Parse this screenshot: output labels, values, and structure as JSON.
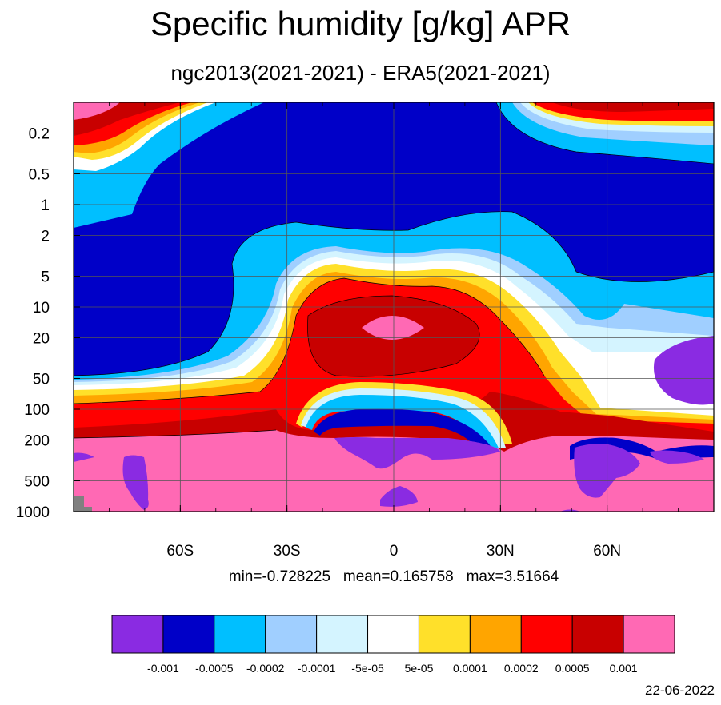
{
  "title": "Specific humidity [g/kg] APR",
  "subtitle": "ngc2013(2021-2021) - ERA5(2021-2021)",
  "stats": {
    "text": "min=-0.728225   mean=0.165758   max=3.51664",
    "min": -0.728225,
    "mean": 0.165758,
    "max": 3.51664
  },
  "date": "22-06-2022",
  "colors": {
    "purple": "#8A2BE2",
    "dark_blue": "#0000C8",
    "blue": "#00BFFF",
    "light_blue": "#A0CFFF",
    "pale_blue": "#D4F4FF",
    "white": "#FFFFFF",
    "yellow": "#FFE02A",
    "orange": "#FFA500",
    "red": "#FF0000",
    "dark_red": "#C80000",
    "pink": "#FF69B4",
    "missing": "#808080"
  },
  "chart_data": {
    "type": "heatmap",
    "title": "Specific humidity [g/kg] APR",
    "subtitle": "ngc2013(2021-2021) - ERA5(2021-2021)",
    "x_axis": {
      "ticks": [
        -60,
        -30,
        0,
        30,
        60
      ],
      "tick_labels": [
        "60S",
        "30S",
        "0",
        "30N",
        "60N"
      ],
      "range": [
        -90,
        90
      ]
    },
    "y_axis": {
      "scale": "log",
      "inverted": true,
      "ticks": [
        0.2,
        0.5,
        1,
        2,
        5,
        10,
        20,
        50,
        100,
        200,
        500,
        1000
      ],
      "tick_labels": [
        "0.2",
        "0.5",
        "1",
        "2",
        "5",
        "10",
        "20",
        "50",
        "100",
        "200",
        "500",
        "1000"
      ],
      "range": [
        0.1,
        1000
      ]
    },
    "grid": true,
    "legend_position": "bottom",
    "colorbar": {
      "levels": [
        -0.001,
        -0.0005,
        -0.0002,
        -0.0001,
        -5e-05,
        5e-05,
        0.0001,
        0.0002,
        0.0005,
        0.001
      ],
      "labels": [
        "-0.001",
        "-0.0005",
        "-0.0002",
        "-0.0001",
        "-5e-05",
        "5e-05",
        "0.0001",
        "0.0002",
        "0.0005",
        "0.001"
      ],
      "colors": [
        "#8A2BE2",
        "#0000C8",
        "#00BFFF",
        "#A0CFFF",
        "#D4F4FF",
        "#FFFFFF",
        "#FFE02A",
        "#FFA500",
        "#FF0000",
        "#C80000",
        "#FF69B4"
      ]
    },
    "stats": {
      "min": -0.728225,
      "mean": 0.165758,
      "max": 3.51664
    }
  }
}
